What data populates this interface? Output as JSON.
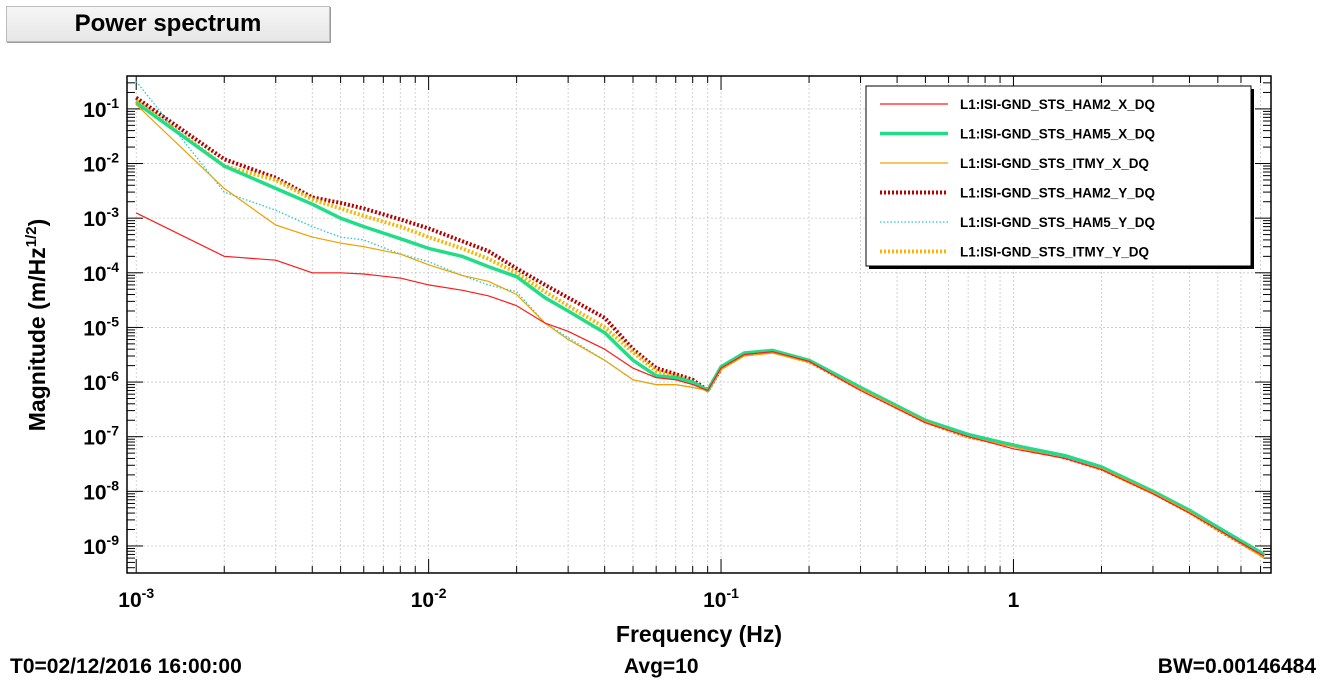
{
  "header": {
    "title": "Power spectrum"
  },
  "footer": {
    "t0": "T0=02/12/2016 16:00:00",
    "avg": "Avg=10",
    "bw": "BW=0.00146484"
  },
  "chart_data": {
    "type": "line",
    "xlabel": "Frequency (Hz)",
    "ylabel": "Magnitude (m/Hz^(1/2))",
    "xscale": "log",
    "yscale": "log",
    "xlim": [
      0.00093,
      7.6
    ],
    "ylim": [
      3.2e-10,
      0.4
    ],
    "grid": true,
    "legend_position": "top-right",
    "x_ticks": [
      {
        "value": 0.001,
        "mant": "10",
        "exp": "-3"
      },
      {
        "value": 0.01,
        "mant": "10",
        "exp": "-2"
      },
      {
        "value": 0.1,
        "mant": "10",
        "exp": "-1"
      },
      {
        "value": 1,
        "mant": "1",
        "exp": ""
      }
    ],
    "y_ticks": [
      {
        "value": 0.1,
        "mant": "10",
        "exp": "-1"
      },
      {
        "value": 0.01,
        "mant": "10",
        "exp": "-2"
      },
      {
        "value": 0.001,
        "mant": "10",
        "exp": "-3"
      },
      {
        "value": 0.0001,
        "mant": "10",
        "exp": "-4"
      },
      {
        "value": 1e-05,
        "mant": "10",
        "exp": "-5"
      },
      {
        "value": 1e-06,
        "mant": "10",
        "exp": "-6"
      },
      {
        "value": 1e-07,
        "mant": "10",
        "exp": "-7"
      },
      {
        "value": 1e-08,
        "mant": "10",
        "exp": "-8"
      },
      {
        "value": 1e-09,
        "mant": "10",
        "exp": "-9"
      }
    ],
    "series": [
      {
        "name": "L1:ISI-GND_STS_HAM2_X_DQ",
        "color": "#ff1a1a",
        "style": "solid",
        "width": 1.2,
        "x": [
          0.001,
          0.002,
          0.003,
          0.004,
          0.005,
          0.006,
          0.008,
          0.01,
          0.013,
          0.016,
          0.02,
          0.025,
          0.03,
          0.04,
          0.05,
          0.06,
          0.07,
          0.08,
          0.09,
          0.1,
          0.12,
          0.15,
          0.2,
          0.3,
          0.5,
          0.7,
          1,
          1.5,
          2,
          3,
          4,
          5,
          7.2
        ],
        "y": [
          0.00125,
          0.0002,
          0.00017,
          0.0001,
          0.0001,
          9.5e-05,
          8e-05,
          6e-05,
          4.8e-05,
          3.8e-05,
          2.5e-05,
          1.2e-05,
          8.5e-06,
          4e-06,
          1.8e-06,
          1.2e-06,
          1.1e-06,
          9e-07,
          7e-07,
          1.8e-06,
          3.2e-06,
          3.6e-06,
          2.4e-06,
          7e-07,
          1.8e-07,
          1e-07,
          6e-08,
          4e-08,
          2.5e-08,
          9e-09,
          4e-09,
          2e-09,
          6.5e-10
        ]
      },
      {
        "name": "L1:ISI-GND_STS_HAM5_X_DQ",
        "color": "#22dd88",
        "style": "solid",
        "width": 3.5,
        "x": [
          0.001,
          0.002,
          0.003,
          0.004,
          0.005,
          0.006,
          0.008,
          0.01,
          0.013,
          0.016,
          0.02,
          0.025,
          0.03,
          0.04,
          0.05,
          0.06,
          0.07,
          0.08,
          0.09,
          0.1,
          0.12,
          0.15,
          0.2,
          0.3,
          0.5,
          0.7,
          1,
          1.5,
          2,
          3,
          4,
          5,
          7.2
        ],
        "y": [
          0.13,
          0.009,
          0.0035,
          0.0018,
          0.001,
          0.0007,
          0.00042,
          0.00028,
          0.0002,
          0.00013,
          8.5e-05,
          3.5e-05,
          2e-05,
          8e-06,
          2.5e-06,
          1.3e-06,
          1.2e-06,
          1e-06,
          7e-07,
          1.9e-06,
          3.4e-06,
          3.8e-06,
          2.5e-06,
          8e-07,
          2e-07,
          1.1e-07,
          7e-08,
          4.5e-08,
          2.8e-08,
          1e-08,
          4.5e-09,
          2.2e-09,
          7e-10
        ]
      },
      {
        "name": "L1:ISI-GND_STS_ITMY_X_DQ",
        "color": "#f0a000",
        "style": "solid",
        "width": 1.2,
        "x": [
          0.001,
          0.002,
          0.003,
          0.004,
          0.005,
          0.006,
          0.008,
          0.01,
          0.013,
          0.016,
          0.02,
          0.025,
          0.03,
          0.04,
          0.05,
          0.06,
          0.07,
          0.08,
          0.09,
          0.1,
          0.12,
          0.15,
          0.2,
          0.3,
          0.5,
          0.7,
          1,
          1.5,
          2,
          3,
          4,
          5,
          7.2
        ],
        "y": [
          0.12,
          0.0035,
          0.00075,
          0.00045,
          0.00035,
          0.0003,
          0.00022,
          0.00014,
          9e-05,
          7e-05,
          4e-05,
          1.2e-05,
          6e-06,
          2.5e-06,
          1.1e-06,
          9e-07,
          9e-07,
          8e-07,
          7e-07,
          1.7e-06,
          3e-06,
          3.4e-06,
          2.3e-06,
          7.5e-07,
          1.9e-07,
          1e-07,
          6.5e-08,
          4e-08,
          2.6e-08,
          9.5e-09,
          4.2e-09,
          2e-09,
          6e-10
        ]
      },
      {
        "name": "L1:ISI-GND_STS_HAM2_Y_DQ",
        "color": "#b30000",
        "style": "dotted",
        "width": 4,
        "x": [
          0.001,
          0.002,
          0.003,
          0.004,
          0.005,
          0.006,
          0.008,
          0.01,
          0.013,
          0.016,
          0.02,
          0.025,
          0.03,
          0.04,
          0.05,
          0.06,
          0.07,
          0.08,
          0.09,
          0.1,
          0.12,
          0.15,
          0.2,
          0.3,
          0.5,
          0.7,
          1,
          1.5,
          2,
          3,
          4,
          5,
          7.2
        ],
        "y": [
          0.16,
          0.012,
          0.0055,
          0.0024,
          0.0019,
          0.0015,
          0.00095,
          0.00065,
          0.00038,
          0.00025,
          0.00012,
          6e-05,
          3.5e-05,
          1.5e-05,
          4e-06,
          1.8e-06,
          1.4e-06,
          1.1e-06,
          7e-07,
          1.8e-06,
          3.3e-06,
          3.7e-06,
          2.4e-06,
          7.5e-07,
          1.9e-07,
          1e-07,
          7e-08,
          4.2e-08,
          2.6e-08,
          9.5e-09,
          4.2e-09,
          2e-09,
          6.5e-10
        ]
      },
      {
        "name": "L1:ISI-GND_STS_HAM5_Y_DQ",
        "color": "#1fc9c9",
        "style": "dotted",
        "width": 1.3,
        "x": [
          0.001,
          0.002,
          0.003,
          0.004,
          0.005,
          0.006,
          0.008,
          0.01,
          0.013,
          0.016,
          0.02,
          0.025,
          0.03,
          0.04,
          0.05,
          0.06,
          0.07,
          0.08,
          0.09,
          0.1,
          0.12,
          0.15,
          0.2,
          0.3,
          0.5,
          0.7,
          1,
          1.5,
          2,
          3,
          4,
          5,
          7.2
        ],
        "y": [
          0.32,
          0.003,
          0.0014,
          0.0007,
          0.00045,
          0.0004,
          0.00022,
          0.00016,
          9e-05,
          6e-05,
          4.5e-05,
          1.2e-05,
          6.5e-06,
          2.5e-06,
          1.1e-06,
          9e-07,
          9e-07,
          8e-07,
          7e-07,
          1.8e-06,
          3.1e-06,
          3.5e-06,
          2.4e-06,
          7.8e-07,
          2e-07,
          1.1e-07,
          7e-08,
          4.3e-08,
          2.7e-08,
          9.8e-09,
          4.4e-09,
          2.1e-09,
          6.8e-10
        ]
      },
      {
        "name": "L1:ISI-GND_STS_ITMY_Y_DQ",
        "color": "#f5b800",
        "style": "dotted",
        "width": 4,
        "x": [
          0.001,
          0.002,
          0.003,
          0.004,
          0.005,
          0.006,
          0.008,
          0.01,
          0.013,
          0.016,
          0.02,
          0.025,
          0.03,
          0.04,
          0.05,
          0.06,
          0.07,
          0.08,
          0.09,
          0.1,
          0.12,
          0.15,
          0.2,
          0.3,
          0.5,
          0.7,
          1,
          1.5,
          2,
          3,
          4,
          5,
          7.2
        ],
        "y": [
          0.14,
          0.009,
          0.005,
          0.0022,
          0.0015,
          0.0011,
          0.0007,
          0.00045,
          0.00028,
          0.00018,
          0.0001,
          4.5e-05,
          2.5e-05,
          1e-05,
          3.5e-06,
          1.6e-06,
          1.3e-06,
          1e-06,
          7e-07,
          1.8e-06,
          3.2e-06,
          3.6e-06,
          2.4e-06,
          7.6e-07,
          1.9e-07,
          1e-07,
          7e-08,
          4.3e-08,
          2.6e-08,
          9.5e-09,
          4.2e-09,
          2e-09,
          6.5e-10
        ]
      }
    ]
  }
}
